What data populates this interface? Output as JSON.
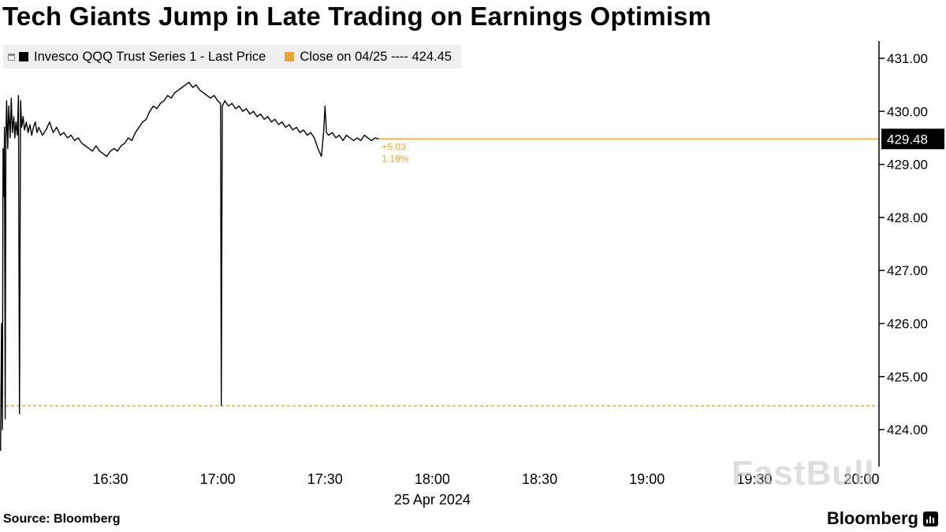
{
  "title": "Tech Giants Jump in Late Trading on Earnings Optimism",
  "legend": {
    "series1_label": "Invesco QQQ Trust Series 1 - Last Price",
    "series2_label": "Close on 04/25 ---- 424.45"
  },
  "watermark": "FastBull",
  "footer": {
    "source": "Source:  Bloomberg",
    "brand": "Bloomberg"
  },
  "colors": {
    "accent_orange": "#e8a33d",
    "line_black": "#000000",
    "legend_bg": "#efefef"
  },
  "chart_data": {
    "type": "line",
    "title": "Tech Giants Jump in Late Trading on Earnings Optimism",
    "date_label": "25 Apr 2024",
    "grid": false,
    "legend_position": "top-left",
    "last_price": "429.48",
    "change": "+5.03",
    "change_pct": "1.19%",
    "x_unit": "time of day (minutes since midnight), 25 Apr 2024",
    "x_ticks": [
      {
        "label": "16:30",
        "minute": 990
      },
      {
        "label": "17:00",
        "minute": 1020
      },
      {
        "label": "17:30",
        "minute": 1050
      },
      {
        "label": "18:00",
        "minute": 1080
      },
      {
        "label": "18:30",
        "minute": 1110
      },
      {
        "label": "19:00",
        "minute": 1140
      },
      {
        "label": "19:30",
        "minute": 1170
      },
      {
        "label": "20:00",
        "minute": 1200
      }
    ],
    "y_ticks": [
      {
        "label": "431.00",
        "value": 431.0
      },
      {
        "label": "430.00",
        "value": 430.0
      },
      {
        "label": "429.00",
        "value": 429.0
      },
      {
        "label": "428.00",
        "value": 428.0
      },
      {
        "label": "427.00",
        "value": 427.0
      },
      {
        "label": "426.00",
        "value": 426.0
      },
      {
        "label": "425.00",
        "value": 425.0
      },
      {
        "label": "424.00",
        "value": 424.0
      }
    ],
    "y_range": [
      423.3,
      431.35
    ],
    "reference_lines": [
      {
        "name": "close-price-line",
        "value": 424.45,
        "style": "dashed",
        "color": "#e8a33d",
        "label": "Close on 04/25 ---- 424.45"
      },
      {
        "name": "last-price-line",
        "value": 429.48,
        "style": "solid",
        "color": "#e8a33d",
        "from_minute": 1065,
        "label": "429.48"
      }
    ],
    "series": [
      {
        "name": "Invesco QQQ Trust Series 1 - Last Price",
        "color": "#000000",
        "points": [
          [
            959.3,
            423.6
          ],
          [
            959.6,
            426.0
          ],
          [
            959.8,
            424.0
          ],
          [
            960.0,
            429.3
          ],
          [
            960.2,
            428.4
          ],
          [
            960.4,
            429.7
          ],
          [
            960.6,
            424.2
          ],
          [
            960.8,
            429.5
          ],
          [
            961.0,
            430.2
          ],
          [
            961.3,
            429.3
          ],
          [
            961.6,
            430.1
          ],
          [
            962.0,
            429.5
          ],
          [
            962.3,
            430.25
          ],
          [
            962.6,
            429.6
          ],
          [
            963.0,
            429.9
          ],
          [
            963.3,
            429.5
          ],
          [
            963.6,
            429.8
          ],
          [
            964.0,
            429.55
          ],
          [
            964.3,
            430.3
          ],
          [
            964.6,
            424.3
          ],
          [
            964.9,
            430.2
          ],
          [
            965.2,
            429.7
          ],
          [
            965.6,
            429.9
          ],
          [
            966.0,
            429.65
          ],
          [
            966.5,
            429.8
          ],
          [
            967.0,
            429.6
          ],
          [
            967.5,
            429.75
          ],
          [
            968.0,
            429.55
          ],
          [
            968.5,
            429.7
          ],
          [
            969.0,
            429.8
          ],
          [
            969.5,
            429.6
          ],
          [
            970.0,
            429.7
          ],
          [
            971.0,
            429.55
          ],
          [
            972.0,
            429.65
          ],
          [
            973.0,
            429.8
          ],
          [
            974.0,
            429.6
          ],
          [
            975.0,
            429.7
          ],
          [
            976.0,
            429.55
          ],
          [
            977.0,
            429.6
          ],
          [
            978.0,
            429.5
          ],
          [
            979.0,
            429.55
          ],
          [
            980.0,
            429.45
          ],
          [
            981.0,
            429.5
          ],
          [
            982.0,
            429.4
          ],
          [
            983.0,
            429.35
          ],
          [
            984.0,
            429.3
          ],
          [
            985.0,
            429.25
          ],
          [
            986.0,
            429.35
          ],
          [
            987.0,
            429.25
          ],
          [
            988.0,
            429.2
          ],
          [
            989.0,
            429.15
          ],
          [
            990.0,
            429.25
          ],
          [
            991.0,
            429.3
          ],
          [
            992.0,
            429.25
          ],
          [
            993.0,
            429.35
          ],
          [
            994.0,
            429.4
          ],
          [
            995.0,
            429.5
          ],
          [
            996.0,
            429.45
          ],
          [
            997.0,
            429.6
          ],
          [
            998.0,
            429.7
          ],
          [
            999.0,
            429.8
          ],
          [
            1000.0,
            429.85
          ],
          [
            1001.0,
            430.0
          ],
          [
            1002.0,
            430.1
          ],
          [
            1003.0,
            430.05
          ],
          [
            1004.0,
            430.15
          ],
          [
            1005.0,
            430.2
          ],
          [
            1006.0,
            430.3
          ],
          [
            1007.0,
            430.25
          ],
          [
            1008.0,
            430.35
          ],
          [
            1009.0,
            430.4
          ],
          [
            1010.0,
            430.45
          ],
          [
            1011.0,
            430.5
          ],
          [
            1012.0,
            430.55
          ],
          [
            1013.0,
            430.45
          ],
          [
            1014.0,
            430.5
          ],
          [
            1015.0,
            430.4
          ],
          [
            1016.0,
            430.35
          ],
          [
            1017.0,
            430.3
          ],
          [
            1018.0,
            430.25
          ],
          [
            1019.0,
            430.3
          ],
          [
            1020.0,
            430.2
          ],
          [
            1020.8,
            430.15
          ],
          [
            1021.0,
            424.45
          ],
          [
            1021.3,
            430.1
          ],
          [
            1022.0,
            430.2
          ],
          [
            1023.0,
            430.1
          ],
          [
            1024.0,
            430.15
          ],
          [
            1025.0,
            430.05
          ],
          [
            1026.0,
            430.1
          ],
          [
            1027.0,
            430.0
          ],
          [
            1028.0,
            430.05
          ],
          [
            1029.0,
            429.95
          ],
          [
            1030.0,
            430.0
          ],
          [
            1031.0,
            429.9
          ],
          [
            1032.0,
            429.95
          ],
          [
            1033.0,
            429.85
          ],
          [
            1034.0,
            429.9
          ],
          [
            1035.0,
            429.8
          ],
          [
            1036.0,
            429.85
          ],
          [
            1037.0,
            429.75
          ],
          [
            1038.0,
            429.8
          ],
          [
            1039.0,
            429.7
          ],
          [
            1040.0,
            429.75
          ],
          [
            1041.0,
            429.65
          ],
          [
            1042.0,
            429.7
          ],
          [
            1043.0,
            429.6
          ],
          [
            1044.0,
            429.65
          ],
          [
            1045.0,
            429.55
          ],
          [
            1046.0,
            429.6
          ],
          [
            1047.0,
            429.5
          ],
          [
            1048.0,
            429.3
          ],
          [
            1049.0,
            429.15
          ],
          [
            1049.6,
            429.6
          ],
          [
            1050.0,
            430.1
          ],
          [
            1050.4,
            429.6
          ],
          [
            1051.0,
            429.55
          ],
          [
            1052.0,
            429.6
          ],
          [
            1053.0,
            429.5
          ],
          [
            1054.0,
            429.55
          ],
          [
            1055.0,
            429.45
          ],
          [
            1056.0,
            429.55
          ],
          [
            1057.0,
            429.5
          ],
          [
            1058.0,
            429.45
          ],
          [
            1059.0,
            429.5
          ],
          [
            1060.0,
            429.45
          ],
          [
            1061.0,
            429.55
          ],
          [
            1062.0,
            429.5
          ],
          [
            1063.0,
            429.45
          ],
          [
            1064.0,
            429.5
          ],
          [
            1065.0,
            429.48
          ]
        ]
      }
    ],
    "annotations": [
      {
        "text": "+5.03",
        "color": "#e8a33d"
      },
      {
        "text": "1.19%",
        "color": "#e8a33d"
      }
    ]
  }
}
